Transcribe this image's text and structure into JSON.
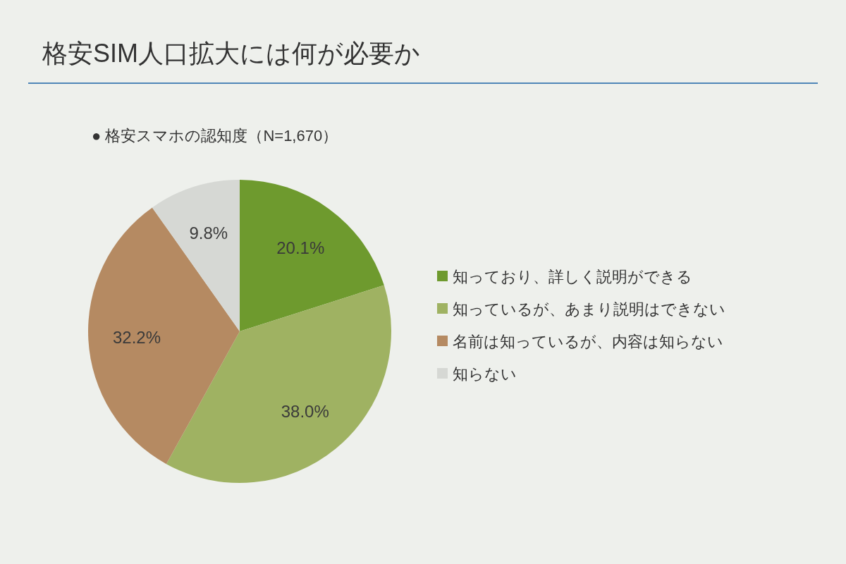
{
  "chart_data": {
    "type": "pie",
    "title": "格安SIM人口拡大には何が必要か",
    "subtitle": "● 格安スマホの認知度（N=1,670）",
    "categories": [
      "知っており、詳しく説明ができる",
      "知っているが、あまり説明はできない",
      "名前は知っているが、内容は知らない",
      "知らない"
    ],
    "values": [
      20.1,
      38.0,
      32.2,
      9.8
    ],
    "value_labels": [
      "20.1%",
      "38.0%",
      "32.2%",
      "9.8%"
    ],
    "colors": [
      "#6e9a2e",
      "#9fb262",
      "#b58a62",
      "#d6d8d4"
    ],
    "legend": "right"
  }
}
